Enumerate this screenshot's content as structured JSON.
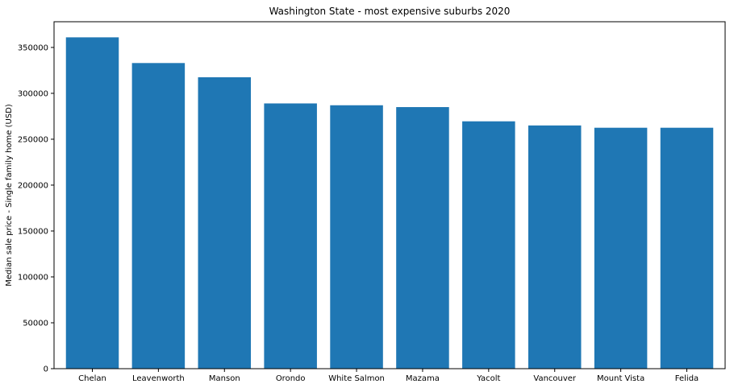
{
  "chart_data": {
    "type": "bar",
    "title": "Washington State - most expensive suburbs 2020",
    "xlabel": "",
    "ylabel": "Median sale price - Single family home (USD)",
    "categories": [
      "Chelan",
      "Leavenworth",
      "Manson",
      "Orondo",
      "White Salmon",
      "Mazama",
      "Yacolt",
      "Vancouver",
      "Mount Vista",
      "Felida"
    ],
    "values": [
      361000,
      333000,
      317500,
      289000,
      287000,
      285000,
      269500,
      265000,
      262500,
      262500
    ],
    "ylim": [
      0,
      378000
    ],
    "yticks": [
      0,
      50000,
      100000,
      150000,
      200000,
      250000,
      300000,
      350000
    ],
    "grid": false,
    "bar_color": "#1f77b4"
  }
}
